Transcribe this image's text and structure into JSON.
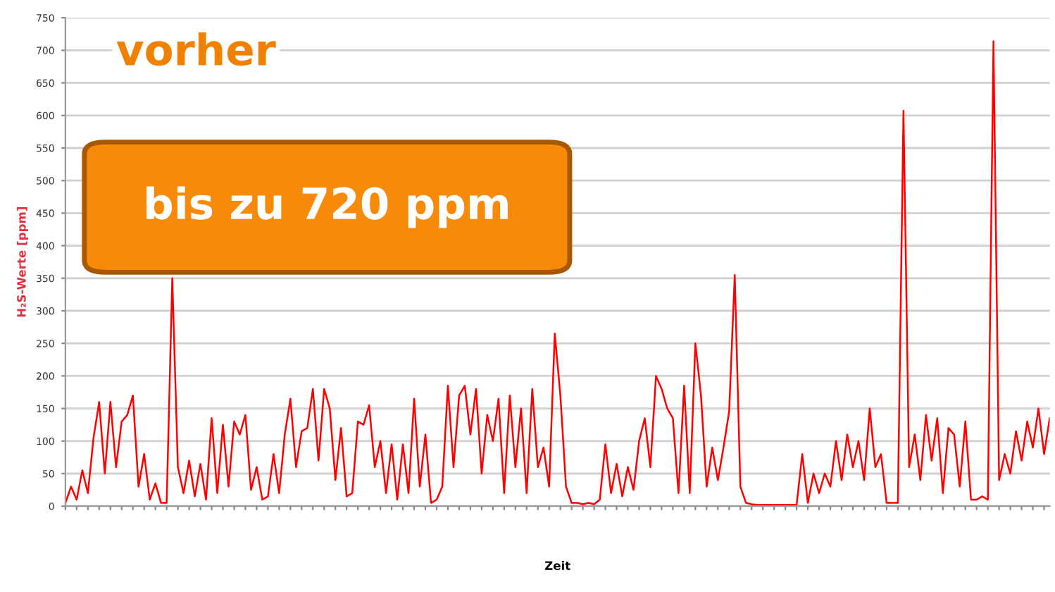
{
  "chart_data": {
    "type": "line",
    "xlabel": "Zeit",
    "ylabel": "H₂S-Werte [ppm]",
    "annotations": [
      "vorher",
      "bis zu 720 ppm"
    ],
    "categories": [
      null,
      null,
      null,
      null,
      null,
      null,
      null,
      null,
      null,
      null,
      null,
      null,
      null,
      null,
      null,
      null,
      null,
      null,
      null,
      null,
      null,
      null,
      null,
      null,
      null,
      null,
      null,
      null,
      null,
      null,
      null,
      null,
      null,
      null,
      null,
      null,
      null,
      null,
      null,
      null,
      null,
      null,
      null,
      null,
      null,
      null,
      null,
      null,
      null,
      null,
      null,
      null,
      null,
      null,
      null,
      null,
      null,
      null,
      null,
      null,
      null,
      null,
      null,
      null,
      null,
      null,
      null,
      null,
      null,
      null,
      null,
      null,
      null,
      null,
      null,
      null,
      null,
      null,
      null,
      null,
      null,
      null,
      null,
      null,
      null,
      null,
      null,
      null,
      null,
      null,
      null,
      null,
      null,
      null,
      null,
      null,
      null,
      null,
      null,
      null,
      null,
      null,
      null,
      null,
      null,
      null,
      null,
      null,
      null,
      null,
      null,
      null,
      null,
      null,
      null,
      null,
      null,
      null,
      null,
      null,
      null,
      null,
      null,
      null,
      null,
      null,
      null,
      null,
      null,
      null,
      null,
      null,
      null,
      null,
      null,
      null,
      null,
      null,
      null,
      null,
      null,
      null,
      null,
      null,
      null,
      null,
      null,
      null,
      null,
      null,
      null,
      null,
      null,
      null,
      null,
      null,
      null,
      null,
      null,
      null,
      null,
      null,
      null,
      null,
      null,
      null,
      null,
      null,
      null,
      null,
      null,
      null,
      null,
      null,
      null,
      null
    ],
    "series": [
      {
        "color": "#ff0000",
        "values": [
          5,
          30,
          10,
          55,
          20,
          105,
          160,
          50,
          160,
          60,
          130,
          140,
          170,
          30,
          80,
          10,
          35,
          5,
          5,
          350,
          60,
          20,
          70,
          15,
          65,
          10,
          135,
          20,
          125,
          30,
          130,
          110,
          140,
          25,
          60,
          10,
          15,
          80,
          20,
          110,
          165,
          60,
          115,
          120,
          180,
          70,
          180,
          150,
          40,
          120,
          15,
          20,
          130,
          125,
          155,
          60,
          100,
          20,
          95,
          10,
          95,
          20,
          165,
          30,
          110,
          5,
          10,
          30,
          185,
          60,
          170,
          185,
          110,
          180,
          50,
          140,
          100,
          165,
          20,
          170,
          60,
          150,
          20,
          180,
          60,
          90,
          30,
          265,
          170,
          30,
          5,
          5,
          3,
          5,
          3,
          10,
          95,
          20,
          65,
          15,
          60,
          25,
          100,
          135,
          60,
          200,
          180,
          150,
          135,
          20,
          185,
          20,
          250,
          170,
          30,
          90,
          40,
          90,
          145,
          355,
          30,
          5,
          3,
          2,
          2,
          2,
          2,
          2,
          2,
          2,
          2,
          80,
          5,
          50,
          20,
          50,
          30,
          100,
          40,
          110,
          60,
          100,
          40,
          150,
          60,
          80,
          5,
          5,
          5,
          607,
          60,
          110,
          40,
          140,
          70,
          135,
          20,
          120,
          110,
          30,
          130,
          10,
          10,
          15,
          10,
          714,
          40,
          80,
          50,
          115,
          70,
          130,
          90,
          150,
          80,
          135
        ]
      }
    ],
    "ylim": [
      0,
      750
    ],
    "yticks": [
      0,
      50,
      100,
      150,
      200,
      250,
      300,
      350,
      400,
      450,
      500,
      550,
      600,
      650,
      700,
      750
    ],
    "grid": "y",
    "tick_labels": "y",
    "marker": "none",
    "line_style": "solid"
  }
}
